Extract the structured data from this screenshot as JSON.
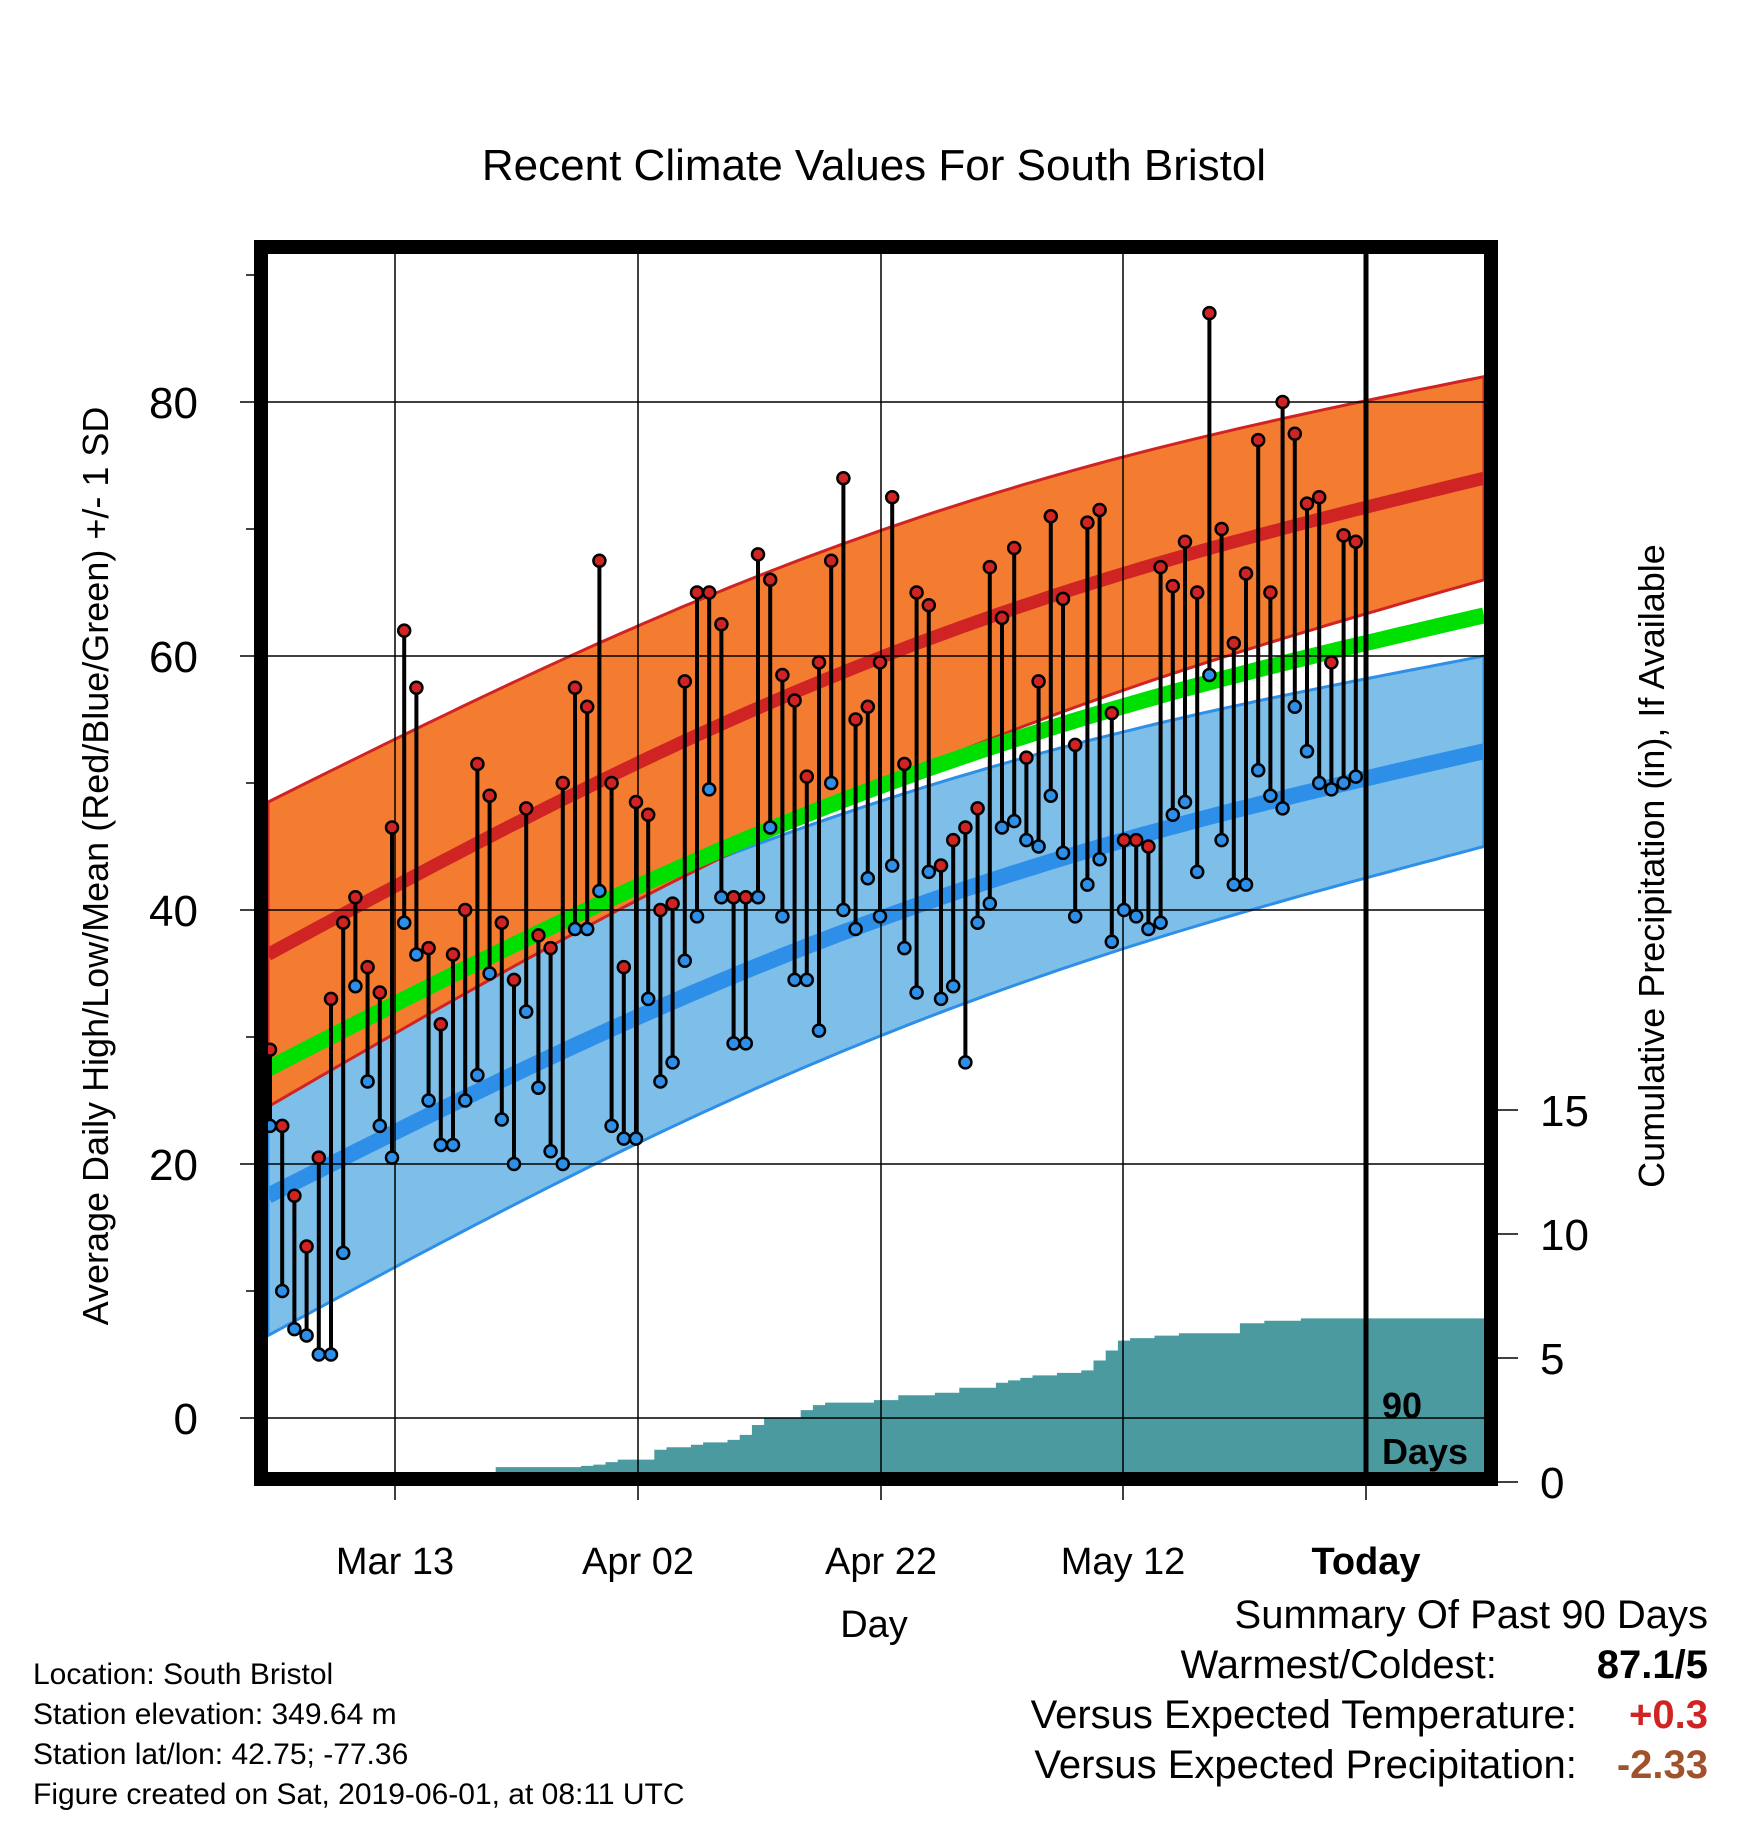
{
  "chart_data": {
    "type": "line",
    "title": "Recent Climate Values For South Bristol",
    "xlabel": "Day",
    "ylabel": "Average Daily High/Low/Mean (Red/Blue/Green) +/- 1 SD",
    "y2label": "Cumulative Precipitation (in), If Available",
    "x_ticks": [
      "Mar 13",
      "Apr 02",
      "Apr 22",
      "May 12",
      "Today"
    ],
    "y_ticks": [
      0,
      20,
      40,
      60,
      80
    ],
    "y2_ticks": [
      0,
      5,
      10,
      15
    ],
    "ylim": [
      -4,
      90
    ],
    "annotation": [
      "90",
      "Days"
    ],
    "normal_high": {
      "mean_start": 36.5,
      "mean_end": 74,
      "sd_start": 12,
      "sd_end": 8
    },
    "normal_low": {
      "mean_start": 17.5,
      "mean_end": 52.5,
      "sd_start": 11,
      "sd_end": 7.5
    },
    "normal_avg": {
      "start": 27.5,
      "end": 63.2
    },
    "colors": {
      "high_band": "#f47c30",
      "high_line": "#d02424",
      "low_band": "#7dbfe8",
      "low_line": "#2e8fe8",
      "mean_line": "#00e000",
      "precip": "#4a9aa0"
    },
    "series": [
      {
        "name": "High",
        "values": [
          29,
          23,
          17.5,
          13.5,
          20.5,
          33,
          39,
          41,
          35.5,
          33.5,
          46.5,
          62,
          57.5,
          37,
          31,
          36.5,
          40,
          51.5,
          49,
          39,
          34.5,
          48,
          38,
          37,
          50,
          57.5,
          56,
          67.5,
          50,
          35.5,
          48.5,
          47.5,
          40,
          40.5,
          58,
          65,
          65,
          62.5,
          41,
          41,
          68,
          66,
          58.5,
          56.5,
          50.5,
          59.5,
          67.5,
          74,
          55,
          56,
          59.5,
          72.5,
          51.5,
          65,
          64,
          43.5,
          45.5,
          46.5,
          48,
          67,
          63,
          68.5,
          52,
          58,
          71,
          64.5,
          53,
          70.5,
          71.5,
          55.5,
          45.5,
          45.5,
          45,
          67,
          65.5,
          69,
          65,
          87,
          70,
          61,
          66.5,
          77,
          65,
          80,
          77.5,
          72,
          72.5,
          59.5,
          69.5,
          69
        ]
      },
      {
        "name": "Low",
        "values": [
          23,
          10,
          7,
          6.5,
          5,
          5,
          13,
          34,
          26.5,
          23,
          20.5,
          39,
          36.5,
          25,
          21.5,
          21.5,
          25,
          27,
          35,
          23.5,
          20,
          32,
          26,
          21,
          20,
          38.5,
          38.5,
          41.5,
          23,
          22,
          22,
          33,
          26.5,
          28,
          36,
          39.5,
          49.5,
          41,
          29.5,
          29.5,
          41,
          46.5,
          39.5,
          34.5,
          34.5,
          30.5,
          50,
          40,
          38.5,
          42.5,
          39.5,
          43.5,
          37,
          33.5,
          43,
          33,
          34,
          28,
          39,
          40.5,
          46.5,
          47,
          45.5,
          45,
          49,
          44.5,
          39.5,
          42,
          44,
          37.5,
          40,
          39.5,
          38.5,
          39,
          47.5,
          48.5,
          43,
          58.5,
          45.5,
          42,
          42,
          51,
          49,
          48,
          56,
          52.5,
          50,
          49.5,
          50,
          50.5
        ]
      },
      {
        "name": "Precipitation",
        "values": [
          0,
          0,
          0,
          0,
          0,
          0,
          0,
          0.1,
          0.1,
          0.1,
          0.1,
          0.1,
          0.15,
          0.2,
          0.3,
          0.3,
          0.3,
          0.35,
          0.4,
          0.6,
          0.6,
          0.6,
          0.6,
          0.6,
          0.6,
          0.6,
          0.65,
          0.7,
          0.8,
          0.9,
          0.9,
          0.9,
          1.3,
          1.4,
          1.4,
          1.5,
          1.6,
          1.6,
          1.7,
          1.9,
          2.3,
          2.6,
          2.6,
          2.6,
          2.9,
          3.1,
          3.2,
          3.2,
          3.2,
          3.2,
          3.3,
          3.3,
          3.5,
          3.5,
          3.5,
          3.6,
          3.6,
          3.8,
          3.8,
          3.8,
          4,
          4.1,
          4.2,
          4.3,
          4.3,
          4.4,
          4.4,
          4.5,
          4.9,
          5.3,
          5.7,
          5.8,
          5.8,
          5.9,
          5.9,
          6,
          6,
          6,
          6,
          6,
          6.4,
          6.4,
          6.5,
          6.5,
          6.5,
          6.6,
          6.6,
          6.6,
          6.6,
          6.6
        ]
      }
    ]
  },
  "info": {
    "location": "Location: South Bristol",
    "elevation": "Station elevation: 349.64 m",
    "latlon": "Station lat/lon: 42.75; -77.36",
    "created": "Figure created on Sat, 2019-06-01, at 08:11 UTC"
  },
  "summary": {
    "heading": "Summary Of Past 90 Days",
    "warmest_label": "Warmest/Coldest:",
    "warmest_value": "87.1/5",
    "temp_label": "Versus Expected Temperature:",
    "temp_value": "+0.3",
    "temp_color": "#d02424",
    "precip_label": "Versus Expected Precipitation:",
    "precip_value": "-2.33",
    "precip_color": "#a0522d"
  }
}
